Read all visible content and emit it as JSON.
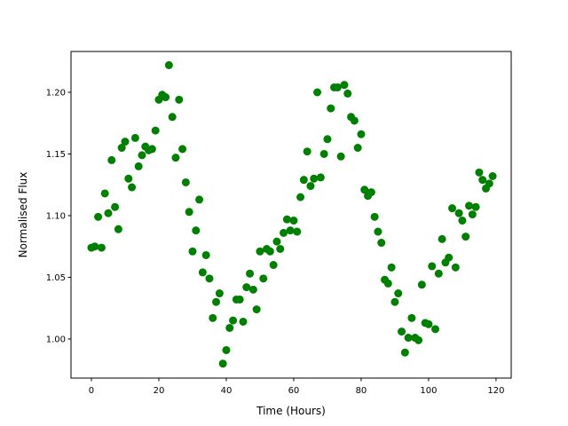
{
  "chart_data": {
    "type": "scatter",
    "x_label": "Time (Hours)",
    "y_label": "Normalised Flux",
    "color": "#008000",
    "x": [
      0,
      1,
      2,
      3,
      4,
      5,
      6,
      7,
      8,
      9,
      10,
      11,
      12,
      13,
      14,
      15,
      16,
      17,
      18,
      19,
      20,
      21,
      22,
      23,
      24,
      25,
      26,
      27,
      28,
      29,
      30,
      31,
      32,
      33,
      34,
      35,
      36,
      37,
      38,
      39,
      40,
      41,
      42,
      43,
      44,
      45,
      46,
      47,
      48,
      49,
      50,
      51,
      52,
      53,
      54,
      55,
      56,
      57,
      58,
      59,
      60,
      61,
      62,
      63,
      64,
      65,
      66,
      67,
      68,
      69,
      70,
      71,
      72,
      73,
      74,
      75,
      76,
      77,
      78,
      79,
      80,
      81,
      82,
      83,
      84,
      85,
      86,
      87,
      88,
      89,
      90,
      91,
      92,
      93,
      94,
      95,
      96,
      97,
      98,
      99,
      100,
      101,
      102,
      103,
      104,
      105,
      106,
      107,
      108,
      109,
      110,
      111,
      112,
      113,
      114,
      115,
      116,
      117,
      118,
      119
    ],
    "values": [
      1.074,
      1.075,
      1.099,
      1.074,
      1.118,
      1.102,
      1.145,
      1.107,
      1.089,
      1.155,
      1.16,
      1.13,
      1.123,
      1.163,
      1.14,
      1.149,
      1.156,
      1.153,
      1.154,
      1.169,
      1.194,
      1.198,
      1.196,
      1.222,
      1.18,
      1.147,
      1.194,
      1.154,
      1.127,
      1.103,
      1.071,
      1.088,
      1.113,
      1.054,
      1.068,
      1.049,
      1.017,
      1.03,
      1.037,
      0.98,
      0.991,
      1.009,
      1.015,
      1.032,
      1.032,
      1.014,
      1.042,
      1.053,
      1.04,
      1.024,
      1.071,
      1.049,
      1.073,
      1.071,
      1.06,
      1.079,
      1.073,
      1.086,
      1.097,
      1.088,
      1.096,
      1.087,
      1.115,
      1.129,
      1.152,
      1.124,
      1.13,
      1.2,
      1.131,
      1.15,
      1.162,
      1.187,
      1.204,
      1.204,
      1.148,
      1.206,
      1.199,
      1.18,
      1.177,
      1.155,
      1.166,
      1.121,
      1.116,
      1.119,
      1.099,
      1.087,
      1.078,
      1.048,
      1.045,
      1.058,
      1.03,
      1.037,
      1.006,
      0.989,
      1.001,
      1.017,
      1.001,
      0.999,
      1.044,
      1.013,
      1.012,
      1.059,
      1.008,
      1.053,
      1.081,
      1.062,
      1.066,
      1.106,
      1.058,
      1.102,
      1.096,
      1.083,
      1.108,
      1.101,
      1.107,
      1.135,
      1.129,
      1.122,
      1.126,
      1.132
    ],
    "xlim": [
      -6.05,
      124.5
    ],
    "ylim": [
      0.9683,
      1.2331
    ],
    "xticks": [
      0,
      20,
      40,
      60,
      80,
      100,
      120
    ],
    "yticks": [
      {
        "value": 1.0,
        "label": "1.00"
      },
      1.05,
      {
        "value": 1.1,
        "label": "1.10"
      },
      1.15,
      {
        "value": 1.2,
        "label": "1.20"
      }
    ],
    "grid": false
  }
}
